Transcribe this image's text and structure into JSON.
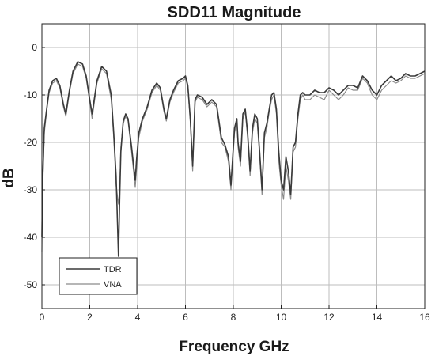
{
  "chart_data": {
    "type": "line",
    "title": "SDD11 Magnitude",
    "xlabel": "Frequency GHz",
    "ylabel": "dB",
    "xlim": [
      0,
      16
    ],
    "ylim": [
      -55,
      5
    ],
    "xticks": [
      0,
      2,
      4,
      6,
      8,
      10,
      12,
      14,
      16
    ],
    "yticks": [
      0,
      -10,
      -20,
      -30,
      -40,
      -50
    ],
    "grid": true,
    "legend": "bottom-left",
    "series": [
      {
        "name": "TDR",
        "color": "#3a3a3a",
        "x": [
          0.0,
          0.03,
          0.1,
          0.2,
          0.3,
          0.45,
          0.6,
          0.75,
          0.9,
          1.0,
          1.15,
          1.3,
          1.5,
          1.7,
          1.85,
          2.0,
          2.1,
          2.3,
          2.5,
          2.7,
          2.9,
          3.0,
          3.1,
          3.2,
          3.25,
          3.3,
          3.4,
          3.5,
          3.6,
          3.75,
          3.9,
          3.95,
          4.05,
          4.2,
          4.4,
          4.6,
          4.8,
          4.95,
          5.1,
          5.2,
          5.35,
          5.5,
          5.7,
          5.9,
          6.0,
          6.1,
          6.2,
          6.3,
          6.4,
          6.5,
          6.7,
          6.9,
          7.1,
          7.3,
          7.5,
          7.65,
          7.8,
          7.9,
          7.95,
          8.05,
          8.15,
          8.2,
          8.3,
          8.4,
          8.5,
          8.6,
          8.7,
          8.8,
          8.9,
          9.0,
          9.1,
          9.2,
          9.3,
          9.4,
          9.5,
          9.6,
          9.7,
          9.8,
          9.9,
          10.0,
          10.1,
          10.2,
          10.3,
          10.4,
          10.5,
          10.6,
          10.7,
          10.8,
          10.9,
          11.0,
          11.2,
          11.4,
          11.6,
          11.8,
          12.0,
          12.2,
          12.4,
          12.6,
          12.8,
          13.0,
          13.2,
          13.4,
          13.6,
          13.8,
          14.0,
          14.2,
          14.4,
          14.6,
          14.8,
          15.0,
          15.2,
          15.4,
          15.6,
          15.8,
          16.0
        ],
        "values": [
          -40,
          -28,
          -17,
          -13,
          -9,
          -7,
          -6.5,
          -8,
          -12,
          -14,
          -9,
          -5,
          -3,
          -3.5,
          -6,
          -11,
          -14,
          -7,
          -4,
          -5,
          -10,
          -18,
          -27,
          -44,
          -32,
          -22,
          -15.5,
          -14,
          -15,
          -21,
          -28,
          -24,
          -18,
          -15,
          -12.5,
          -9,
          -7.5,
          -8.5,
          -13,
          -15,
          -11,
          -9,
          -7,
          -6.5,
          -6,
          -8,
          -15,
          -25,
          -11,
          -10,
          -10.5,
          -12,
          -11,
          -12,
          -19,
          -20.5,
          -23,
          -29,
          -25,
          -17,
          -15,
          -20,
          -24,
          -14,
          -13,
          -18,
          -26,
          -17,
          -14,
          -15,
          -22,
          -30,
          -18,
          -16,
          -13,
          -10,
          -9.5,
          -13,
          -22,
          -28,
          -30,
          -23,
          -26,
          -31,
          -21,
          -20,
          -14,
          -10,
          -9.5,
          -10,
          -10,
          -9,
          -9.5,
          -9.5,
          -8.5,
          -9,
          -10,
          -9,
          -8,
          -8,
          -8.5,
          -6,
          -7,
          -9,
          -10,
          -8,
          -7,
          -6,
          -7,
          -6.5,
          -5.5,
          -6,
          -6,
          -5.5,
          -5
        ]
      },
      {
        "name": "VNA",
        "color": "#8a8a8a",
        "x": [
          0.0,
          0.03,
          0.1,
          0.2,
          0.3,
          0.45,
          0.6,
          0.75,
          0.9,
          1.0,
          1.15,
          1.3,
          1.5,
          1.7,
          1.85,
          2.0,
          2.1,
          2.3,
          2.5,
          2.7,
          2.9,
          3.0,
          3.1,
          3.2,
          3.25,
          3.3,
          3.4,
          3.5,
          3.6,
          3.75,
          3.9,
          3.95,
          4.05,
          4.2,
          4.4,
          4.6,
          4.8,
          4.95,
          5.1,
          5.2,
          5.35,
          5.5,
          5.7,
          5.9,
          6.0,
          6.1,
          6.2,
          6.3,
          6.4,
          6.5,
          6.7,
          6.9,
          7.1,
          7.3,
          7.5,
          7.65,
          7.8,
          7.9,
          7.95,
          8.05,
          8.15,
          8.2,
          8.3,
          8.4,
          8.5,
          8.6,
          8.7,
          8.8,
          8.9,
          9.0,
          9.1,
          9.2,
          9.3,
          9.4,
          9.5,
          9.6,
          9.7,
          9.8,
          9.9,
          10.0,
          10.1,
          10.2,
          10.3,
          10.4,
          10.5,
          10.6,
          10.7,
          10.8,
          10.9,
          11.0,
          11.2,
          11.4,
          11.6,
          11.8,
          12.0,
          12.2,
          12.4,
          12.6,
          12.8,
          13.0,
          13.2,
          13.4,
          13.6,
          13.8,
          14.0,
          14.2,
          14.4,
          14.6,
          14.8,
          15.0,
          15.2,
          15.4,
          15.6,
          15.8,
          16.0
        ],
        "values": [
          -43,
          -30,
          -18,
          -13.5,
          -9.5,
          -7.5,
          -7,
          -8.5,
          -12.5,
          -14.5,
          -9.5,
          -5.5,
          -3.5,
          -4,
          -6.5,
          -11.5,
          -15,
          -7.5,
          -4.5,
          -5.5,
          -11,
          -19,
          -29,
          -33,
          -30,
          -21,
          -16,
          -14.5,
          -15.5,
          -22,
          -29.5,
          -26,
          -19,
          -15.5,
          -13,
          -9.5,
          -8,
          -9,
          -13.5,
          -15.5,
          -11.5,
          -9.5,
          -7.5,
          -7,
          -6.5,
          -8.5,
          -15.5,
          -26,
          -11.5,
          -10.5,
          -11,
          -12.5,
          -11.5,
          -12.5,
          -20,
          -21,
          -24,
          -30,
          -26,
          -18,
          -15.5,
          -21,
          -25,
          -15,
          -13.5,
          -19,
          -27,
          -18,
          -15,
          -16,
          -23,
          -31,
          -19,
          -17,
          -13.5,
          -11,
          -10,
          -14,
          -24,
          -29,
          -32,
          -25,
          -28,
          -32,
          -22,
          -21,
          -15,
          -11,
          -10,
          -11,
          -11,
          -10,
          -10.5,
          -11,
          -9,
          -10,
          -11,
          -10,
          -8.5,
          -9,
          -9,
          -6.5,
          -7.5,
          -10,
          -11,
          -9,
          -8,
          -7,
          -7.5,
          -7,
          -6,
          -6.5,
          -6.5,
          -6,
          -5.5
        ]
      }
    ]
  }
}
